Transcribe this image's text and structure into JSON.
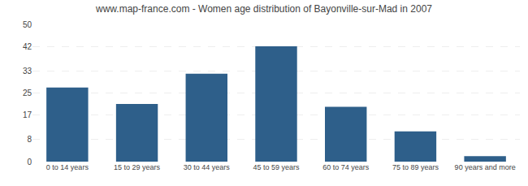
{
  "chart_data": {
    "type": "bar",
    "title": "www.map-france.com - Women age distribution of Bayonville-sur-Mad in 2007",
    "categories": [
      "0 to 14 years",
      "15 to 29 years",
      "30 to 44 years",
      "45 to 59 years",
      "60 to 74 years",
      "75 to 89 years",
      "90 years and more"
    ],
    "values": [
      27,
      21,
      32,
      42,
      20,
      11,
      2
    ],
    "color": "#2e5f8a",
    "ylim": [
      0,
      50
    ],
    "yticks": [
      0,
      8,
      17,
      25,
      33,
      42,
      50
    ],
    "grid": true
  }
}
